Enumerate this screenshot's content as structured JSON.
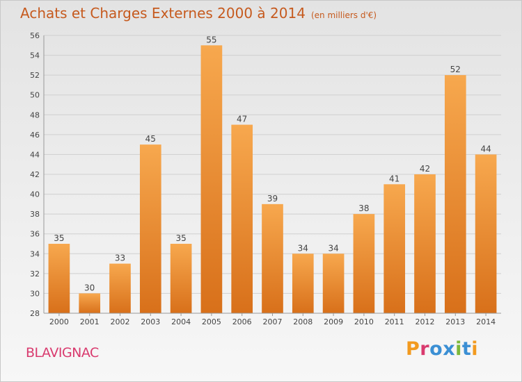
{
  "header": {
    "title": "Achats et Charges Externes 2000 à 2014",
    "subtitle": "(en milliers d'€)"
  },
  "footer": {
    "place": "BLAVIGNAC",
    "logo_text": "Proxiti"
  },
  "colors": {
    "bar_top": "#f7a84e",
    "bar_bottom": "#d8701a",
    "title": "#c65a1e",
    "place": "#d93a6e",
    "grid": "#cfcfcf",
    "logo_letters": [
      "#f29a1f",
      "#d93a6e",
      "#3b8fd4",
      "#3b8fd4",
      "#7cb83a",
      "#3b8fd4",
      "#f29a1f"
    ]
  },
  "chart_data": {
    "type": "bar",
    "categories": [
      "2000",
      "2001",
      "2002",
      "2003",
      "2004",
      "2005",
      "2006",
      "2007",
      "2008",
      "2009",
      "2010",
      "2011",
      "2012",
      "2013",
      "2014"
    ],
    "values": [
      35,
      30,
      33,
      45,
      35,
      55,
      47,
      39,
      34,
      34,
      38,
      41,
      42,
      52,
      44
    ],
    "ylim": [
      28,
      56
    ],
    "yticks": [
      28,
      30,
      32,
      34,
      36,
      38,
      40,
      42,
      44,
      46,
      48,
      50,
      52,
      54,
      56
    ],
    "grid": true,
    "data_labels": true
  }
}
